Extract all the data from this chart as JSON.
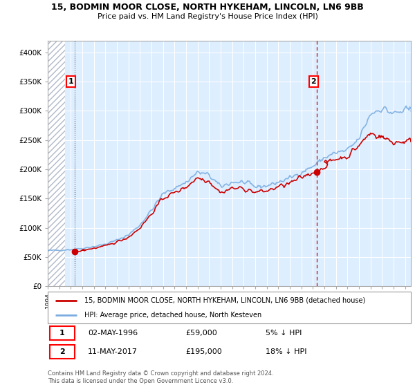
{
  "title": "15, BODMIN MOOR CLOSE, NORTH HYKEHAM, LINCOLN, LN6 9BB",
  "subtitle": "Price paid vs. HM Land Registry's House Price Index (HPI)",
  "ylim": [
    0,
    420000
  ],
  "yticks": [
    0,
    50000,
    100000,
    150000,
    200000,
    250000,
    300000,
    350000,
    400000
  ],
  "ytick_labels": [
    "£0",
    "£50K",
    "£100K",
    "£150K",
    "£200K",
    "£250K",
    "£300K",
    "£350K",
    "£400K"
  ],
  "xmin": 1994.0,
  "xmax": 2025.5,
  "purchase1_x": 1996.33,
  "purchase1_y": 59000,
  "purchase2_x": 2017.36,
  "purchase2_y": 195000,
  "legend_line1": "15, BODMIN MOOR CLOSE, NORTH HYKEHAM, LINCOLN, LN6 9BB (detached house)",
  "legend_line2": "HPI: Average price, detached house, North Kesteven",
  "annotation1_label": "1",
  "annotation1_date": "02-MAY-1996",
  "annotation1_price": "£59,000",
  "annotation1_hpi": "5% ↓ HPI",
  "annotation2_label": "2",
  "annotation2_date": "11-MAY-2017",
  "annotation2_price": "£195,000",
  "annotation2_hpi": "18% ↓ HPI",
  "footer": "Contains HM Land Registry data © Crown copyright and database right 2024.\nThis data is licensed under the Open Government Licence v3.0.",
  "line_color_red": "#cc0000",
  "line_color_blue": "#7aade0",
  "bg_color": "#ddeeff",
  "hatch_color": "#c0c0c0"
}
